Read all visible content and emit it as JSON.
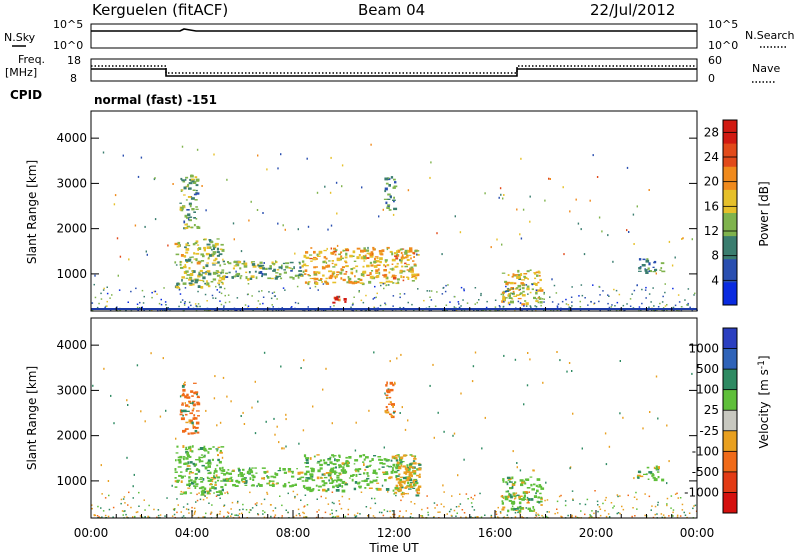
{
  "header": {
    "station": "Kerguelen (fitACF)",
    "beam": "Beam 04",
    "date": "22/Jul/2012"
  },
  "top_panels": {
    "noise": {
      "left_label": "N.Sky",
      "right_label": "N.Search",
      "left_ticks": [
        "10^5",
        "10^0"
      ],
      "right_ticks": [
        "10^5",
        "10^0"
      ]
    },
    "freq": {
      "left_label_1": "Freq.",
      "left_label_2": "[MHz]",
      "left_ticks": [
        "18",
        "8"
      ],
      "right_label": "Nave",
      "right_ticks": [
        "60",
        "0"
      ],
      "cpid_label": "CPID",
      "cpid_value": "normal (fast) -151"
    }
  },
  "chart_data": [
    {
      "type": "heatmap",
      "name": "power",
      "ylabel": "Slant Range [km]",
      "xlabel": "",
      "yticks": [
        "1000",
        "2000",
        "3000",
        "4000"
      ],
      "ylim": [
        180,
        4600
      ],
      "colorbar": {
        "label": "Power [dB]",
        "ticks": [
          "4",
          "8",
          "12",
          "16",
          "20",
          "24",
          "28"
        ],
        "range": [
          0,
          30
        ],
        "colors": [
          "#0a2be0",
          "#2a4fb0",
          "#3a7d6f",
          "#7fb34d",
          "#e6c02a",
          "#f08a1c",
          "#e24a1a",
          "#d11a12"
        ]
      },
      "echo_regions": [
        {
          "t_start": 3.3,
          "t_end": 5.2,
          "r_low": 700,
          "r_high": 1800,
          "level": 14
        },
        {
          "t_start": 3.5,
          "t_end": 4.2,
          "r_low": 2000,
          "r_high": 3200,
          "level": 12
        },
        {
          "t_start": 5.2,
          "t_end": 8.4,
          "r_low": 900,
          "r_high": 1300,
          "level": 12
        },
        {
          "t_start": 8.4,
          "t_end": 12.9,
          "r_low": 800,
          "r_high": 1600,
          "level": 18
        },
        {
          "t_start": 9.4,
          "t_end": 10.2,
          "r_low": 380,
          "r_high": 520,
          "level": 26
        },
        {
          "t_start": 11.6,
          "t_end": 12.0,
          "r_low": 2400,
          "r_high": 3200,
          "level": 10
        },
        {
          "t_start": 16.2,
          "t_end": 17.8,
          "r_low": 350,
          "r_high": 1100,
          "level": 16
        },
        {
          "t_start": 21.6,
          "t_end": 22.6,
          "r_low": 1050,
          "r_high": 1350,
          "level": 10
        }
      ]
    },
    {
      "type": "heatmap",
      "name": "velocity",
      "ylabel": "Slant Range [km]",
      "xlabel": "Time UT",
      "xticks": [
        "00:00",
        "04:00",
        "08:00",
        "12:00",
        "16:00",
        "20:00",
        "00:00"
      ],
      "xlim": [
        0,
        24
      ],
      "yticks": [
        "1000",
        "2000",
        "3000",
        "4000"
      ],
      "ylim": [
        180,
        4600
      ],
      "colorbar": {
        "label": "Velocity",
        "unit_base": "[m s",
        "unit_exp": "-1",
        "unit_close": "]",
        "ticks": [
          "1000",
          "500",
          "100",
          "25",
          "-25",
          "-100",
          "-500",
          "-1000"
        ],
        "colors": [
          "#2b3fc0",
          "#2f63b8",
          "#2e8a62",
          "#5fbf3a",
          "#c8c8c0",
          "#e8a020",
          "#f06a18",
          "#e23a14",
          "#d4100e"
        ]
      },
      "echo_regions": [
        {
          "t_start": 3.3,
          "t_end": 5.2,
          "r_low": 700,
          "r_high": 1800,
          "level": "25"
        },
        {
          "t_start": 3.5,
          "t_end": 4.2,
          "r_low": 2000,
          "r_high": 3200,
          "level": "-500"
        },
        {
          "t_start": 5.2,
          "t_end": 8.4,
          "r_low": 900,
          "r_high": 1300,
          "level": "25"
        },
        {
          "t_start": 8.4,
          "t_end": 12.9,
          "r_low": 800,
          "r_high": 1600,
          "level": "25"
        },
        {
          "t_start": 11.6,
          "t_end": 12.0,
          "r_low": 2400,
          "r_high": 3200,
          "level": "-500"
        },
        {
          "t_start": 12.0,
          "t_end": 13.0,
          "r_low": 700,
          "r_high": 1600,
          "level": "-100"
        },
        {
          "t_start": 16.2,
          "t_end": 17.8,
          "r_low": 350,
          "r_high": 1100,
          "level": "25"
        },
        {
          "t_start": 21.6,
          "t_end": 22.6,
          "r_low": 1050,
          "r_high": 1350,
          "level": "25"
        }
      ]
    }
  ]
}
